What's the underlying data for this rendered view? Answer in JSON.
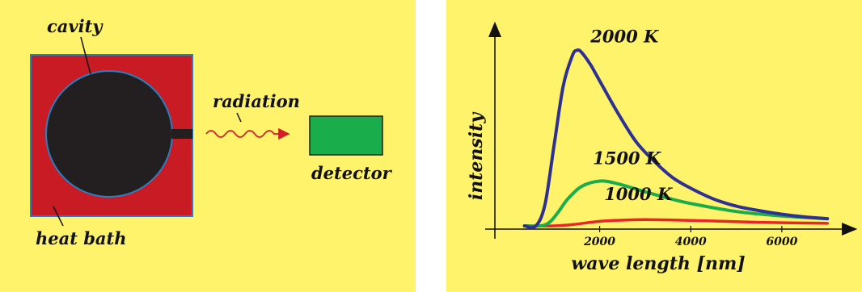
{
  "colors": {
    "panel_bg": "#fff36b",
    "heat_bath": "#c81b24",
    "cavity": "#231f20",
    "outline": "#2a7fc0",
    "detector": "#1aad4b",
    "arrow": "#d21f26",
    "curve_2000": "#2e3192",
    "curve_1500": "#1aad4b",
    "curve_1000": "#e8262a"
  },
  "diagram": {
    "cavity_label": "cavity",
    "heat_bath_label": "heat bath",
    "radiation_label": "radiation",
    "detector_label": "detector"
  },
  "chart_data": {
    "type": "line",
    "xlabel": "wave length [nm]",
    "ylabel": "intensity",
    "x_ticks": [
      2000,
      4000,
      6000
    ],
    "xlim": [
      -300,
      7600
    ],
    "ylim": [
      0,
      1
    ],
    "series": [
      {
        "name": "2000 K",
        "x": [
          600,
          800,
          1000,
          1200,
          1400,
          1500,
          1600,
          1800,
          2000,
          2400,
          2800,
          3200,
          3600,
          4000,
          4500,
          5000,
          5500,
          6000,
          6500,
          7000
        ],
        "values": [
          0.0,
          0.12,
          0.45,
          0.78,
          0.95,
          0.98,
          0.97,
          0.9,
          0.81,
          0.63,
          0.47,
          0.36,
          0.27,
          0.21,
          0.15,
          0.11,
          0.085,
          0.065,
          0.05,
          0.04
        ]
      },
      {
        "name": "1500 K",
        "x": [
          700,
          900,
          1100,
          1300,
          1600,
          2000,
          2400,
          3000,
          3500,
          4000,
          5000,
          6000,
          7000
        ],
        "values": [
          0.0,
          0.02,
          0.08,
          0.15,
          0.22,
          0.25,
          0.235,
          0.19,
          0.155,
          0.125,
          0.08,
          0.055,
          0.04
        ]
      },
      {
        "name": "1000 K",
        "x": [
          1000,
          1400,
          2000,
          2600,
          3000,
          3600,
          4500,
          5500,
          7000
        ],
        "values": [
          0.0,
          0.007,
          0.025,
          0.033,
          0.035,
          0.033,
          0.027,
          0.02,
          0.014
        ]
      }
    ]
  }
}
